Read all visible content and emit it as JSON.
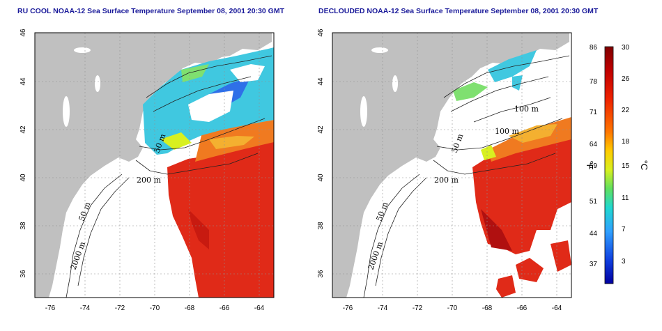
{
  "maps": [
    {
      "title": "RU COOL NOAA-12 Sea Surface Temperature September 08, 2001 20:30 GMT",
      "contour_labels": [
        "50 m",
        "200 m",
        "50 m",
        "2000 m"
      ]
    },
    {
      "title": "DECLOUDED NOAA-12 Sea Surface Temperature September 08, 2001 20:30 GMT",
      "contour_labels": [
        "100 m",
        "100 m",
        "50 m",
        "200 m",
        "50 m",
        "2000 m"
      ]
    }
  ],
  "axes": {
    "x_ticks": [
      "-76",
      "-74",
      "-72",
      "-70",
      "-68",
      "-66",
      "-64"
    ],
    "y_ticks": [
      "46",
      "44",
      "42",
      "40",
      "38",
      "36"
    ]
  },
  "colorbar": {
    "fahrenheit_ticks": [
      "86",
      "78",
      "71",
      "64",
      "59",
      "51",
      "44",
      "37"
    ],
    "celsius_ticks": [
      "30",
      "26",
      "22",
      "18",
      "15",
      "11",
      "7",
      "3"
    ],
    "fahrenheit_unit": "°F",
    "celsius_unit": "°C",
    "colors": [
      "#7f0000",
      "#c00000",
      "#ee2200",
      "#ff7700",
      "#ffcc00",
      "#d8f020",
      "#60e060",
      "#20d8d0",
      "#30a0ff",
      "#1040e0",
      "#0000a0"
    ]
  },
  "colors": {
    "land": "#c0c0c0",
    "cloud": "#ffffff",
    "warm": "#e02a18",
    "hot": "#b01010",
    "cool": "#40c8e0",
    "grid": "#808080"
  }
}
